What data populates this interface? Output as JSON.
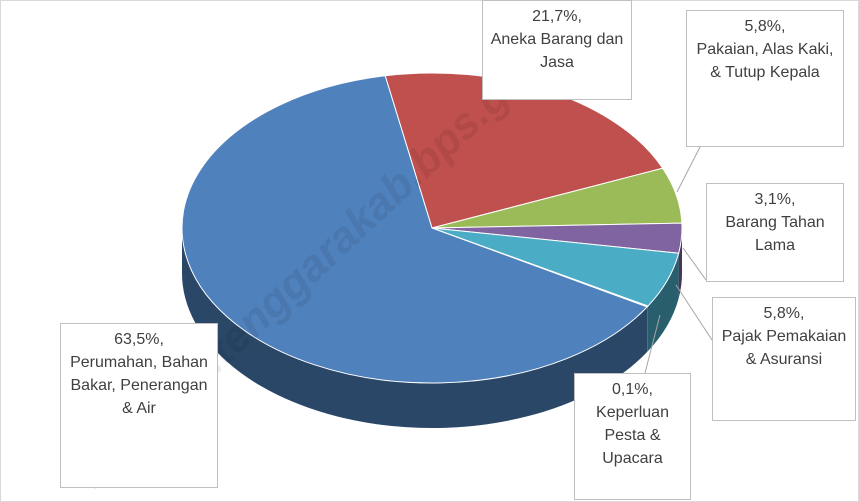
{
  "chart_data": {
    "type": "pie3d",
    "watermark": "//malukutenggarakab.bps.go.id",
    "categories": [
      "Aneka Barang dan Jasa",
      "Pakaian, Alas Kaki, & Tutup Kepala",
      "Barang Tahan Lama",
      "Pajak Pemakaian & Asuransi",
      "Keperluan Pesta & Upacara",
      "Perumahan, Bahan Bakar, Penerangan & Air"
    ],
    "values": [
      21.7,
      5.8,
      3.1,
      5.8,
      0.1,
      63.5
    ],
    "value_labels": [
      "21,7%,",
      "5,8%,",
      "3,1%,",
      "5,8%,",
      "0,1%,",
      "63,5%,"
    ],
    "colors": [
      "#c0504d",
      "#9bbb59",
      "#8064a2",
      "#4bacc6",
      "#f79646",
      "#4f81bd"
    ]
  }
}
